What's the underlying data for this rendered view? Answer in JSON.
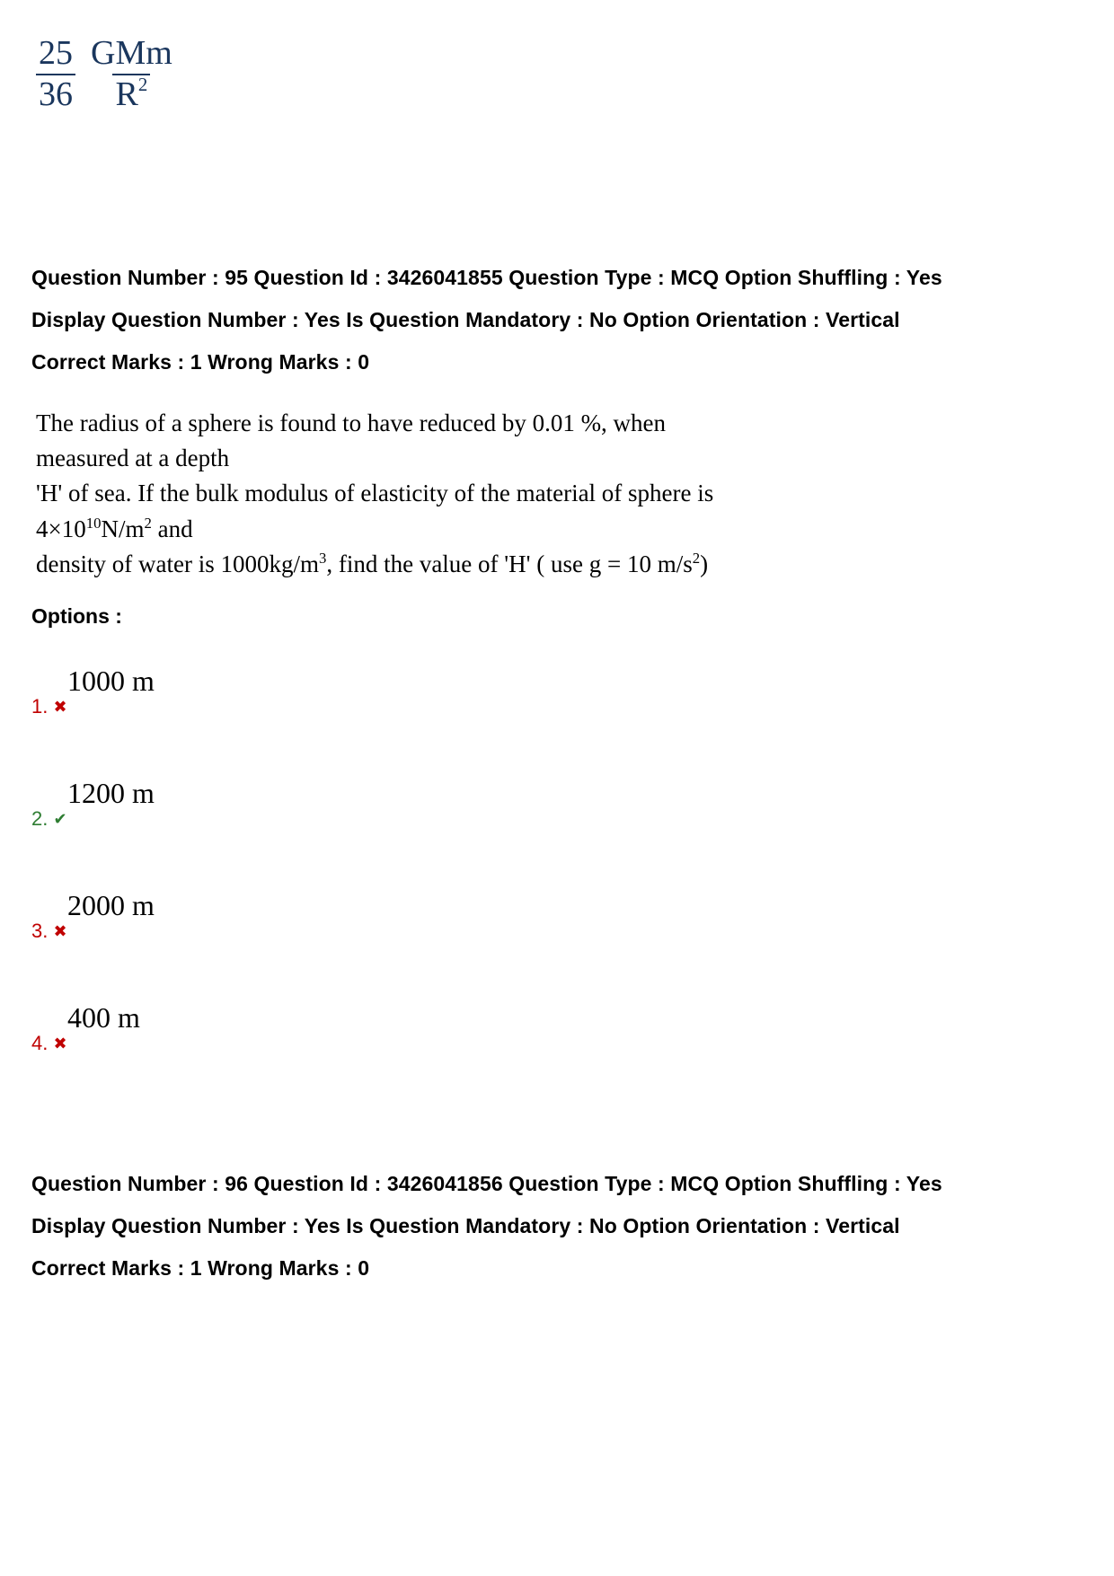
{
  "formula": {
    "frac1_num": "25",
    "frac1_den": "36",
    "frac2_num": "GMm",
    "frac2_den_base": "R",
    "frac2_den_exp": "2"
  },
  "q1": {
    "meta": {
      "line1": "Question Number : 95 Question Id : 3426041855 Question Type : MCQ Option Shuffling : Yes",
      "line2": "Display Question Number : Yes Is Question Mandatory : No Option Orientation : Vertical",
      "line3": "Correct Marks : 1 Wrong Marks : 0"
    },
    "text_l1": "The radius of a sphere is found to have reduced by 0.01 %, when measured at a depth",
    "text_l2a": "'H' of sea. If the bulk modulus of elasticity of the material of sphere is 4×10",
    "text_l2_exp": "10",
    "text_l2b": "N/m",
    "text_l2_exp2": "2",
    "text_l2c": " and",
    "text_l3a": "density of water is 1000kg/m",
    "text_l3_exp": "3",
    "text_l3b": ", find the value of 'H' ( use g = 10 m/s",
    "text_l3_exp2": "2",
    "text_l3c": ")",
    "options_label": "Options :",
    "options": [
      {
        "num": "1.",
        "value": "1000 m",
        "state": "wrong"
      },
      {
        "num": "2.",
        "value": "1200 m",
        "state": "correct"
      },
      {
        "num": "3.",
        "value": "2000 m",
        "state": "wrong"
      },
      {
        "num": "4.",
        "value": "400 m",
        "state": "wrong"
      }
    ]
  },
  "q2": {
    "meta": {
      "line1": "Question Number : 96 Question Id : 3426041856 Question Type : MCQ Option Shuffling : Yes",
      "line2": "Display Question Number : Yes Is Question Mandatory : No Option Orientation : Vertical",
      "line3": "Correct Marks : 1 Wrong Marks : 0"
    }
  },
  "marks": {
    "wrong": "✖",
    "correct": "✔"
  },
  "colors": {
    "formula_color": "#1a365d",
    "wrong_color": "#c00000",
    "correct_color": "#2e7d32",
    "text_color": "#000000",
    "background": "#ffffff"
  }
}
